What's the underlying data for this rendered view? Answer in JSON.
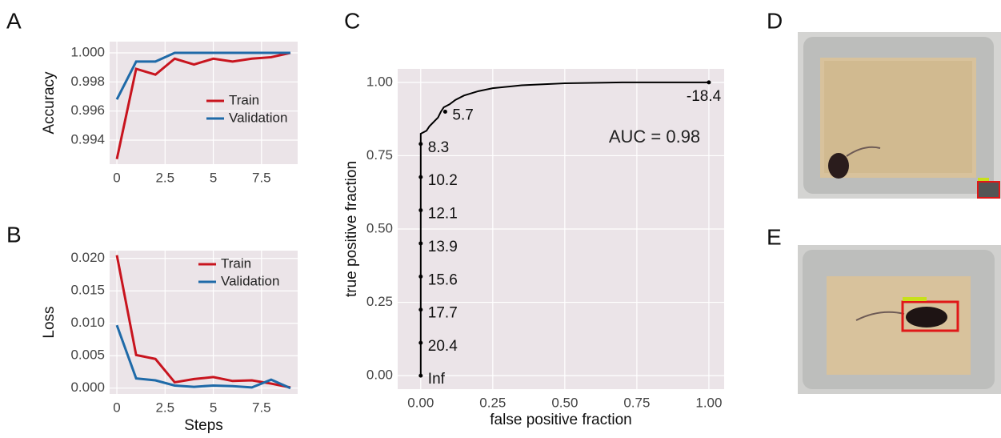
{
  "chart_data": [
    {
      "type": "line",
      "panel": "A",
      "y_label": "Accuracy",
      "x": [
        0,
        1,
        2,
        3,
        4,
        5,
        6,
        7,
        8,
        9
      ],
      "series": [
        {
          "name": "Train",
          "color": "#c8141e",
          "values": [
            0.9927,
            0.9989,
            0.9985,
            0.9996,
            0.9992,
            0.9996,
            0.9994,
            0.9996,
            0.9997,
            1.0
          ]
        },
        {
          "name": "Validation",
          "color": "#1f6aa8",
          "values": [
            0.9968,
            0.9994,
            0.9994,
            1.0,
            1.0,
            1.0,
            1.0,
            1.0,
            1.0,
            1.0
          ]
        }
      ],
      "xlim": [
        -0.375,
        9.375
      ],
      "xticks": [
        0,
        2.5,
        5,
        7.5
      ],
      "ylim": [
        0.99235,
        1.00077
      ],
      "yticks": [
        0.994,
        0.996,
        0.998,
        {
          "value": 1,
          "label": "1.000"
        }
      ],
      "grid": true
    },
    {
      "type": "line",
      "panel": "B",
      "y_label": "Loss",
      "x_label": "Steps",
      "x": [
        0,
        1,
        2,
        3,
        4,
        5,
        6,
        7,
        8,
        9
      ],
      "series": [
        {
          "name": "Train",
          "color": "#c8141e",
          "values": [
            0.0205,
            0.0051,
            0.0045,
            0.0009,
            0.0014,
            0.0017,
            0.0011,
            0.0012,
            0.0007,
            0.0001
          ]
        },
        {
          "name": "Validation",
          "color": "#1f6aa8",
          "values": [
            0.0097,
            0.0015,
            0.0012,
            0.0004,
            0.0002,
            0.0004,
            0.0003,
            0.0001,
            0.0013,
            0.0
          ]
        }
      ],
      "xlim": [
        -0.375,
        9.375
      ],
      "xticks": [
        0,
        2.5,
        5,
        7.5
      ],
      "ylim": [
        -0.0009,
        0.0212
      ],
      "yticks": [
        {
          "value": 0,
          "label": "0.000"
        },
        0.005,
        {
          "value": 0.01,
          "label": "0.010"
        },
        0.015,
        {
          "value": 0.02,
          "label": "0.020"
        }
      ],
      "grid": true
    },
    {
      "type": "line",
      "panel": "C",
      "y_label": "true positive fraction",
      "x_label": "false positive fraction",
      "annotation": "AUC = 0.98",
      "x": [
        0,
        0,
        0,
        0.01,
        0.02,
        0.03,
        0.04,
        0.05,
        0.06,
        0.07,
        0.08,
        0.1,
        0.12,
        0.15,
        0.2,
        0.25,
        0.35,
        0.5,
        0.7,
        1
      ],
      "series": [
        {
          "color": "#000000",
          "values": [
            0,
            0.79,
            0.825,
            0.83,
            0.835,
            0.85,
            0.86,
            0.87,
            0.88,
            0.9,
            0.915,
            0.925,
            0.94,
            0.955,
            0.97,
            0.98,
            0.99,
            0.997,
            1,
            1
          ]
        }
      ],
      "points": {
        "x": [
          0,
          0,
          0,
          0,
          0,
          0,
          0,
          0,
          0.085,
          1
        ],
        "y": [
          0,
          0.112,
          0.225,
          0.338,
          0.451,
          0.564,
          0.677,
          0.79,
          0.9,
          1
        ],
        "labels": [
          "Inf",
          "20.4",
          "17.7",
          "15.6",
          "13.9",
          "12.1",
          "10.2",
          "8.3",
          "5.7",
          "-18.4"
        ]
      },
      "xlim": [
        -0.08,
        1.053
      ],
      "xticks": [
        {
          "value": 0,
          "label": "0.00"
        },
        {
          "value": 0.25,
          "label": "0.25"
        },
        {
          "value": 0.5,
          "label": "0.50"
        },
        {
          "value": 0.75,
          "label": "0.75"
        },
        {
          "value": 1,
          "label": "1.00"
        }
      ],
      "ylim": [
        -0.046,
        1.046
      ],
      "yticks": [
        {
          "value": 0,
          "label": "0.00"
        },
        {
          "value": 0.25,
          "label": "0.25"
        },
        {
          "value": 0.5,
          "label": "0.50"
        },
        {
          "value": 0.75,
          "label": "0.75"
        },
        {
          "value": 1,
          "label": "1.00"
        }
      ],
      "grid": true
    }
  ],
  "images": [
    {
      "panel": "D"
    },
    {
      "panel": "E"
    }
  ]
}
